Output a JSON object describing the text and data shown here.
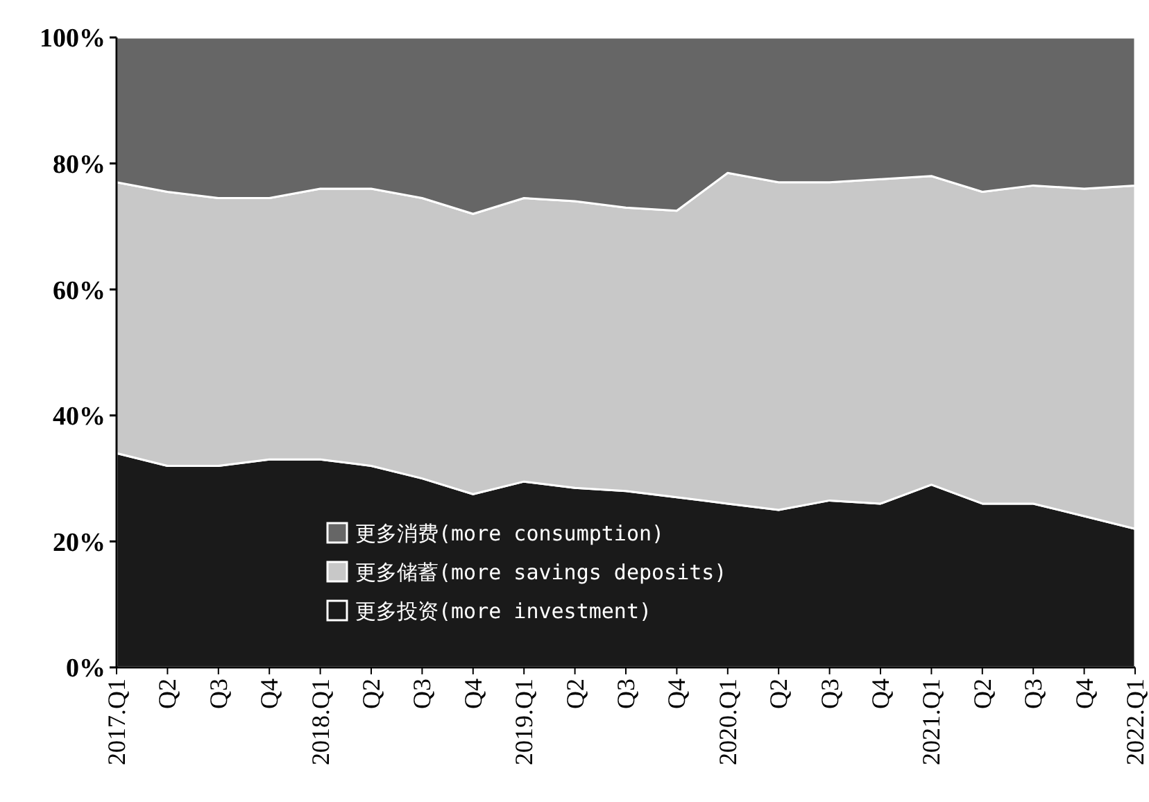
{
  "chart_data": {
    "type": "area",
    "stacked": true,
    "categories": [
      "2017.Q1",
      "Q2",
      "Q3",
      "Q4",
      "2018.Q1",
      "Q2",
      "Q3",
      "Q4",
      "2019.Q1",
      "Q2",
      "Q3",
      "Q4",
      "2020.Q1",
      "Q2",
      "Q3",
      "Q4",
      "2021.Q1",
      "Q2",
      "Q3",
      "Q4",
      "2022.Q1"
    ],
    "series": [
      {
        "name": "更多投资(more investment)",
        "color": "#1a1a1a",
        "values": [
          34,
          32,
          32,
          33,
          33,
          32,
          30,
          27.5,
          29.5,
          28.5,
          28,
          27,
          26,
          25,
          26.5,
          26,
          29,
          26,
          26,
          24,
          22
        ]
      },
      {
        "name": "更多储蓄(more savings deposits)",
        "color": "#c8c8c8",
        "values": [
          43,
          43.5,
          42.5,
          41.5,
          43,
          44,
          44.5,
          44.5,
          45,
          45.5,
          45,
          45.5,
          52.5,
          52,
          50.5,
          51.5,
          49,
          49.5,
          50.5,
          52,
          54.5
        ]
      },
      {
        "name": "更多消费(more consumption)",
        "color": "#666666",
        "values": [
          23,
          24.5,
          25.5,
          25.5,
          24,
          24,
          25.5,
          28,
          25.5,
          26,
          27,
          27.5,
          21.5,
          23,
          23,
          22.5,
          22,
          24.5,
          23.5,
          24,
          23.5
        ]
      }
    ],
    "ylim": [
      0,
      100
    ],
    "yticks": [
      {
        "value": 0,
        "label": "0%"
      },
      {
        "value": 20,
        "label": "20%"
      },
      {
        "value": 40,
        "label": "40%"
      },
      {
        "value": 60,
        "label": "60%"
      },
      {
        "value": 80,
        "label": "80%"
      },
      {
        "value": 100,
        "label": "100%"
      }
    ],
    "legend": "bottom"
  }
}
